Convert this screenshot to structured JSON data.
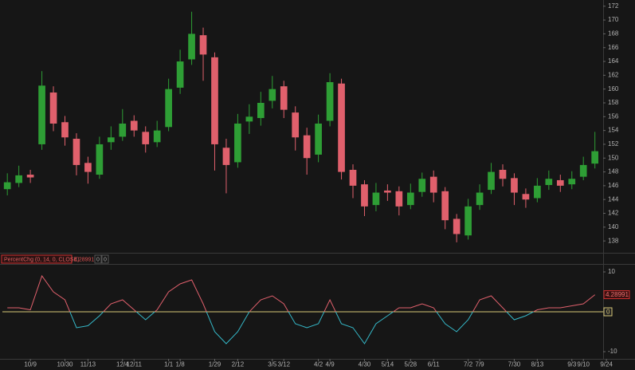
{
  "chart_data": [
    {
      "type": "candlestick",
      "x": [
        -7,
        0,
        7,
        14,
        21,
        28,
        35,
        42,
        49,
        56,
        63,
        70,
        77,
        84,
        91,
        98,
        105,
        112,
        119,
        126,
        133,
        140,
        147,
        154,
        161,
        168,
        175,
        182,
        189,
        196,
        203,
        210,
        217,
        224,
        231,
        238,
        245,
        252,
        259,
        266,
        273,
        280,
        287,
        294,
        301,
        308,
        315,
        322,
        329,
        336,
        343,
        350
      ],
      "open": [
        145.5,
        146.4,
        147.6,
        152,
        159.5,
        155.2,
        152.8,
        149.3,
        147.6,
        152.3,
        153.1,
        155.4,
        153.8,
        152.3,
        154.5,
        160.2,
        164.3,
        167.8,
        164.6,
        151.5,
        149.4,
        155.3,
        155.8,
        158.3,
        160.4,
        156.6,
        153.3,
        150.5,
        155.4,
        160.8,
        148.3,
        146.2,
        143.2,
        145.3,
        145.2,
        143.2,
        145.1,
        147.3,
        145.2,
        141.2,
        138.8,
        143.2,
        145.4,
        148.3,
        147.1,
        144.8,
        144.2,
        146.1,
        146.8,
        146.2,
        147.3,
        149.2
      ],
      "high": [
        147.8,
        148.9,
        148.3,
        162.6,
        160.4,
        156.1,
        153.6,
        150.2,
        153.1,
        154.6,
        157.1,
        156.2,
        154.6,
        155.4,
        161.5,
        165.7,
        171.2,
        168.9,
        165.3,
        152.8,
        156.4,
        157.8,
        159.6,
        161.9,
        161.2,
        157.5,
        154.4,
        156.3,
        162.3,
        161.5,
        149.1,
        146.8,
        146.4,
        146.2,
        145.9,
        146.3,
        147.9,
        148.2,
        145.8,
        141.9,
        144.1,
        146.2,
        149.3,
        149.1,
        147.8,
        145.6,
        147.1,
        148.2,
        147.6,
        148.1,
        150.2,
        153.8
      ],
      "low": [
        144.6,
        145.8,
        146.4,
        151.2,
        153.9,
        151.8,
        147.5,
        146.3,
        147,
        151.2,
        152.5,
        153.1,
        150.8,
        151.6,
        153.9,
        159.3,
        163.5,
        161.2,
        148.2,
        144.9,
        148.6,
        153.5,
        154.7,
        157.2,
        155.8,
        151.1,
        147.6,
        149.4,
        154.6,
        146.9,
        144.2,
        141.6,
        142.3,
        143.8,
        141.7,
        142.6,
        144.4,
        143.6,
        139.7,
        137.8,
        138.2,
        142.5,
        144.8,
        145.9,
        143.2,
        142.8,
        143.6,
        145.4,
        145.1,
        145.5,
        146.8,
        148.5
      ],
      "close": [
        146.5,
        147.5,
        147.2,
        160.5,
        155,
        153,
        149,
        148,
        152,
        153,
        155,
        154,
        152,
        154,
        160,
        164,
        168,
        165,
        152,
        149,
        155,
        156,
        158,
        160,
        157,
        153,
        150,
        155,
        161,
        148,
        146,
        143,
        145,
        145,
        143,
        145,
        147,
        145,
        141,
        139,
        143,
        145,
        148,
        147,
        145,
        144,
        146,
        147,
        146,
        147,
        149,
        151
      ],
      "up_color": "#2e9e35",
      "down_color": "#e0606c",
      "xlim": [
        -10,
        355
      ],
      "ylim": [
        136.4,
        172.9
      ],
      "yticks": [
        138,
        140,
        142,
        144,
        146,
        148,
        150,
        152,
        154,
        156,
        158,
        160,
        162,
        164,
        166,
        168,
        170,
        172
      ]
    },
    {
      "type": "line",
      "title": "PercentChg (0, 14, 0, CLOSE)",
      "header_values": [
        0,
        0
      ],
      "x": [
        -7,
        0,
        7,
        14,
        21,
        28,
        35,
        42,
        49,
        56,
        63,
        70,
        77,
        84,
        91,
        98,
        105,
        112,
        119,
        126,
        133,
        140,
        147,
        154,
        161,
        168,
        175,
        182,
        189,
        196,
        203,
        210,
        217,
        224,
        231,
        238,
        245,
        252,
        259,
        266,
        273,
        280,
        287,
        294,
        301,
        308,
        315,
        322,
        329,
        336,
        343,
        350
      ],
      "values": [
        1,
        1,
        0.5,
        9,
        5,
        3,
        -4,
        -3.5,
        -1,
        2,
        3,
        0.5,
        -2,
        0.5,
        5,
        7,
        8,
        2,
        -5,
        -8,
        -5,
        0,
        3,
        4,
        2,
        -3,
        -4,
        -3,
        3,
        -3,
        -4,
        -8,
        -3,
        -1,
        1,
        1,
        2,
        1,
        -3,
        -5,
        -2,
        3,
        4,
        1,
        -2,
        -1,
        0.5,
        1,
        1,
        1.5,
        2,
        4.28991
      ],
      "up_color": "#e0606c",
      "down_color": "#35b8c8",
      "zero_line": 0,
      "zero_color": "#d8c878",
      "xlim": [
        -10,
        355
      ],
      "ylim": [
        -11.8,
        11.6
      ],
      "yticks": [
        -10,
        0,
        10
      ],
      "xticks": [
        {
          "value": 7,
          "label": "10/9"
        },
        {
          "value": 28,
          "label": "10/30"
        },
        {
          "value": 42,
          "label": "11/13"
        },
        {
          "value": 63,
          "label": "12/4"
        },
        {
          "value": 70,
          "label": "12/11"
        },
        {
          "value": 91,
          "label": "1/1"
        },
        {
          "value": 98,
          "label": "1/8"
        },
        {
          "value": 119,
          "label": "1/29"
        },
        {
          "value": 133,
          "label": "2/12"
        },
        {
          "value": 154,
          "label": "3/5"
        },
        {
          "value": 161,
          "label": "3/12"
        },
        {
          "value": 182,
          "label": "4/2"
        },
        {
          "value": 189,
          "label": "4/9"
        },
        {
          "value": 210,
          "label": "4/30"
        },
        {
          "value": 224,
          "label": "5/14"
        },
        {
          "value": 238,
          "label": "5/28"
        },
        {
          "value": 252,
          "label": "6/11"
        },
        {
          "value": 273,
          "label": "7/2"
        },
        {
          "value": 280,
          "label": "7/9"
        },
        {
          "value": 301,
          "label": "7/30"
        },
        {
          "value": 315,
          "label": "8/13"
        },
        {
          "value": 336,
          "label": "9/3"
        },
        {
          "value": 343,
          "label": "9/10"
        },
        {
          "value": 357,
          "label": "9/24"
        }
      ]
    }
  ]
}
